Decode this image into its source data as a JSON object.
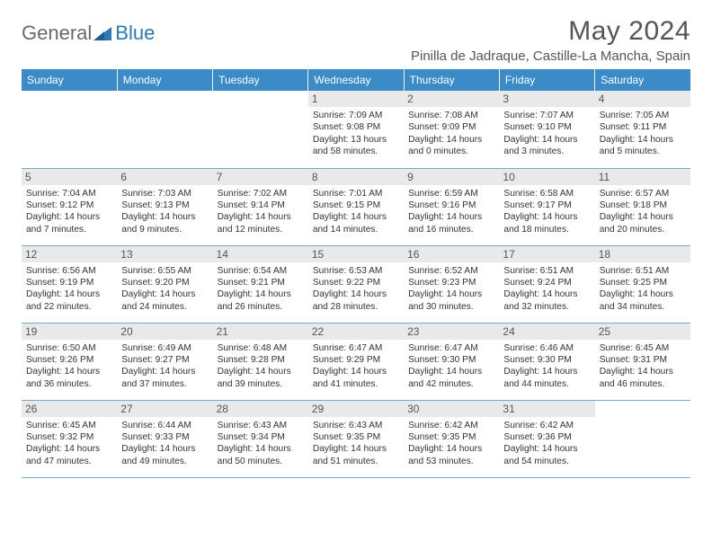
{
  "logo": {
    "general": "General",
    "blue": "Blue"
  },
  "title": "May 2024",
  "location": "Pinilla de Jadraque, Castille-La Mancha, Spain",
  "colors": {
    "header_bg": "#3b8bc9",
    "header_text": "#ffffff",
    "daynum_bg": "#e9e9e9",
    "daynum_text": "#555555",
    "body_text": "#333333",
    "border": "#7aa9cf",
    "logo_gray": "#6a6a6a",
    "logo_blue": "#2e77b8"
  },
  "day_headers": [
    "Sunday",
    "Monday",
    "Tuesday",
    "Wednesday",
    "Thursday",
    "Friday",
    "Saturday"
  ],
  "weeks": [
    [
      {
        "n": "",
        "sr": "",
        "ss": "",
        "dl": ""
      },
      {
        "n": "",
        "sr": "",
        "ss": "",
        "dl": ""
      },
      {
        "n": "",
        "sr": "",
        "ss": "",
        "dl": ""
      },
      {
        "n": "1",
        "sr": "Sunrise: 7:09 AM",
        "ss": "Sunset: 9:08 PM",
        "dl": "Daylight: 13 hours and 58 minutes."
      },
      {
        "n": "2",
        "sr": "Sunrise: 7:08 AM",
        "ss": "Sunset: 9:09 PM",
        "dl": "Daylight: 14 hours and 0 minutes."
      },
      {
        "n": "3",
        "sr": "Sunrise: 7:07 AM",
        "ss": "Sunset: 9:10 PM",
        "dl": "Daylight: 14 hours and 3 minutes."
      },
      {
        "n": "4",
        "sr": "Sunrise: 7:05 AM",
        "ss": "Sunset: 9:11 PM",
        "dl": "Daylight: 14 hours and 5 minutes."
      }
    ],
    [
      {
        "n": "5",
        "sr": "Sunrise: 7:04 AM",
        "ss": "Sunset: 9:12 PM",
        "dl": "Daylight: 14 hours and 7 minutes."
      },
      {
        "n": "6",
        "sr": "Sunrise: 7:03 AM",
        "ss": "Sunset: 9:13 PM",
        "dl": "Daylight: 14 hours and 9 minutes."
      },
      {
        "n": "7",
        "sr": "Sunrise: 7:02 AM",
        "ss": "Sunset: 9:14 PM",
        "dl": "Daylight: 14 hours and 12 minutes."
      },
      {
        "n": "8",
        "sr": "Sunrise: 7:01 AM",
        "ss": "Sunset: 9:15 PM",
        "dl": "Daylight: 14 hours and 14 minutes."
      },
      {
        "n": "9",
        "sr": "Sunrise: 6:59 AM",
        "ss": "Sunset: 9:16 PM",
        "dl": "Daylight: 14 hours and 16 minutes."
      },
      {
        "n": "10",
        "sr": "Sunrise: 6:58 AM",
        "ss": "Sunset: 9:17 PM",
        "dl": "Daylight: 14 hours and 18 minutes."
      },
      {
        "n": "11",
        "sr": "Sunrise: 6:57 AM",
        "ss": "Sunset: 9:18 PM",
        "dl": "Daylight: 14 hours and 20 minutes."
      }
    ],
    [
      {
        "n": "12",
        "sr": "Sunrise: 6:56 AM",
        "ss": "Sunset: 9:19 PM",
        "dl": "Daylight: 14 hours and 22 minutes."
      },
      {
        "n": "13",
        "sr": "Sunrise: 6:55 AM",
        "ss": "Sunset: 9:20 PM",
        "dl": "Daylight: 14 hours and 24 minutes."
      },
      {
        "n": "14",
        "sr": "Sunrise: 6:54 AM",
        "ss": "Sunset: 9:21 PM",
        "dl": "Daylight: 14 hours and 26 minutes."
      },
      {
        "n": "15",
        "sr": "Sunrise: 6:53 AM",
        "ss": "Sunset: 9:22 PM",
        "dl": "Daylight: 14 hours and 28 minutes."
      },
      {
        "n": "16",
        "sr": "Sunrise: 6:52 AM",
        "ss": "Sunset: 9:23 PM",
        "dl": "Daylight: 14 hours and 30 minutes."
      },
      {
        "n": "17",
        "sr": "Sunrise: 6:51 AM",
        "ss": "Sunset: 9:24 PM",
        "dl": "Daylight: 14 hours and 32 minutes."
      },
      {
        "n": "18",
        "sr": "Sunrise: 6:51 AM",
        "ss": "Sunset: 9:25 PM",
        "dl": "Daylight: 14 hours and 34 minutes."
      }
    ],
    [
      {
        "n": "19",
        "sr": "Sunrise: 6:50 AM",
        "ss": "Sunset: 9:26 PM",
        "dl": "Daylight: 14 hours and 36 minutes."
      },
      {
        "n": "20",
        "sr": "Sunrise: 6:49 AM",
        "ss": "Sunset: 9:27 PM",
        "dl": "Daylight: 14 hours and 37 minutes."
      },
      {
        "n": "21",
        "sr": "Sunrise: 6:48 AM",
        "ss": "Sunset: 9:28 PM",
        "dl": "Daylight: 14 hours and 39 minutes."
      },
      {
        "n": "22",
        "sr": "Sunrise: 6:47 AM",
        "ss": "Sunset: 9:29 PM",
        "dl": "Daylight: 14 hours and 41 minutes."
      },
      {
        "n": "23",
        "sr": "Sunrise: 6:47 AM",
        "ss": "Sunset: 9:30 PM",
        "dl": "Daylight: 14 hours and 42 minutes."
      },
      {
        "n": "24",
        "sr": "Sunrise: 6:46 AM",
        "ss": "Sunset: 9:30 PM",
        "dl": "Daylight: 14 hours and 44 minutes."
      },
      {
        "n": "25",
        "sr": "Sunrise: 6:45 AM",
        "ss": "Sunset: 9:31 PM",
        "dl": "Daylight: 14 hours and 46 minutes."
      }
    ],
    [
      {
        "n": "26",
        "sr": "Sunrise: 6:45 AM",
        "ss": "Sunset: 9:32 PM",
        "dl": "Daylight: 14 hours and 47 minutes."
      },
      {
        "n": "27",
        "sr": "Sunrise: 6:44 AM",
        "ss": "Sunset: 9:33 PM",
        "dl": "Daylight: 14 hours and 49 minutes."
      },
      {
        "n": "28",
        "sr": "Sunrise: 6:43 AM",
        "ss": "Sunset: 9:34 PM",
        "dl": "Daylight: 14 hours and 50 minutes."
      },
      {
        "n": "29",
        "sr": "Sunrise: 6:43 AM",
        "ss": "Sunset: 9:35 PM",
        "dl": "Daylight: 14 hours and 51 minutes."
      },
      {
        "n": "30",
        "sr": "Sunrise: 6:42 AM",
        "ss": "Sunset: 9:35 PM",
        "dl": "Daylight: 14 hours and 53 minutes."
      },
      {
        "n": "31",
        "sr": "Sunrise: 6:42 AM",
        "ss": "Sunset: 9:36 PM",
        "dl": "Daylight: 14 hours and 54 minutes."
      },
      {
        "n": "",
        "sr": "",
        "ss": "",
        "dl": ""
      }
    ]
  ]
}
